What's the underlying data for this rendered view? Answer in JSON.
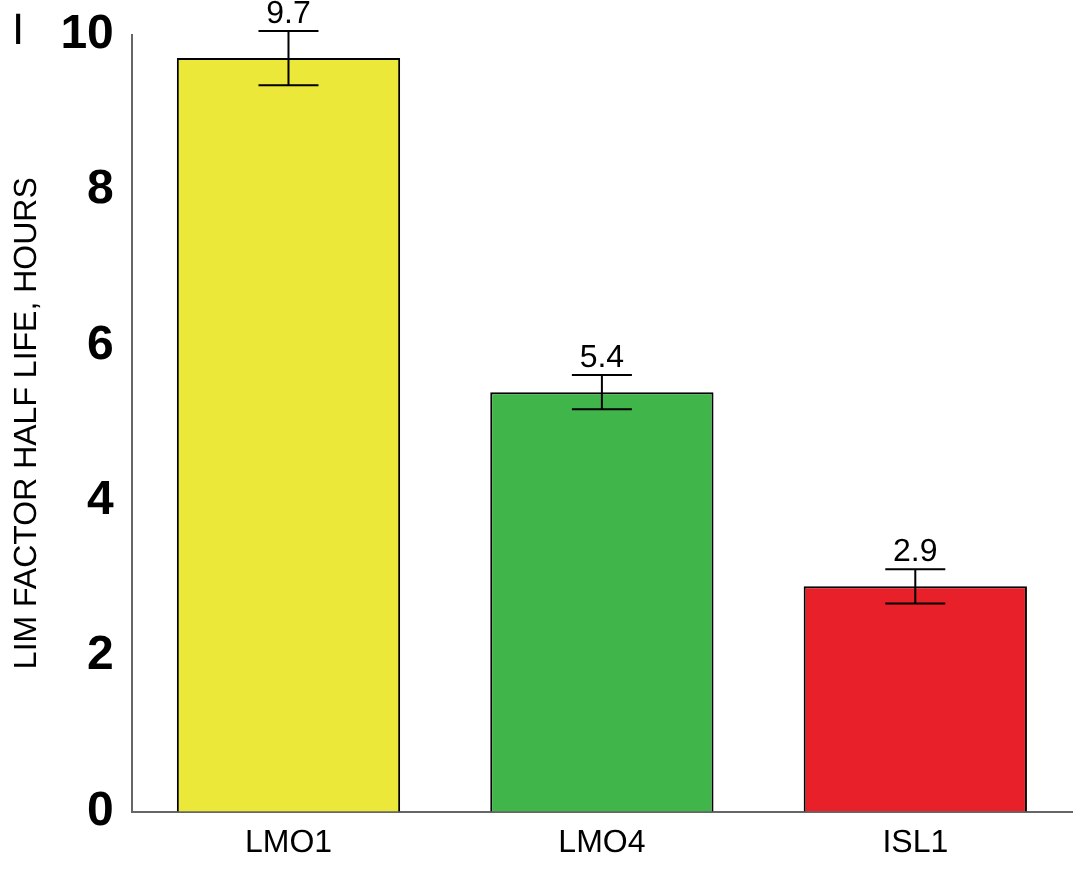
{
  "chart_data": {
    "type": "bar",
    "ylabel": "LIM FACTOR HALF LIFE, HOURS",
    "annotations": [
      "I"
    ],
    "categories": [
      "LMO1",
      "LMO4",
      "ISL1"
    ],
    "values": [
      9.7,
      5.4,
      2.9
    ],
    "errors": [
      0.35,
      0.22,
      0.22
    ],
    "colors": [
      "#ebe83a",
      "#3fb54a",
      "#e8202a"
    ],
    "ylim": [
      0,
      10
    ],
    "yticks": [
      0,
      2,
      4,
      6,
      8,
      10
    ],
    "data_labels": true,
    "grid": false,
    "legend": false
  }
}
